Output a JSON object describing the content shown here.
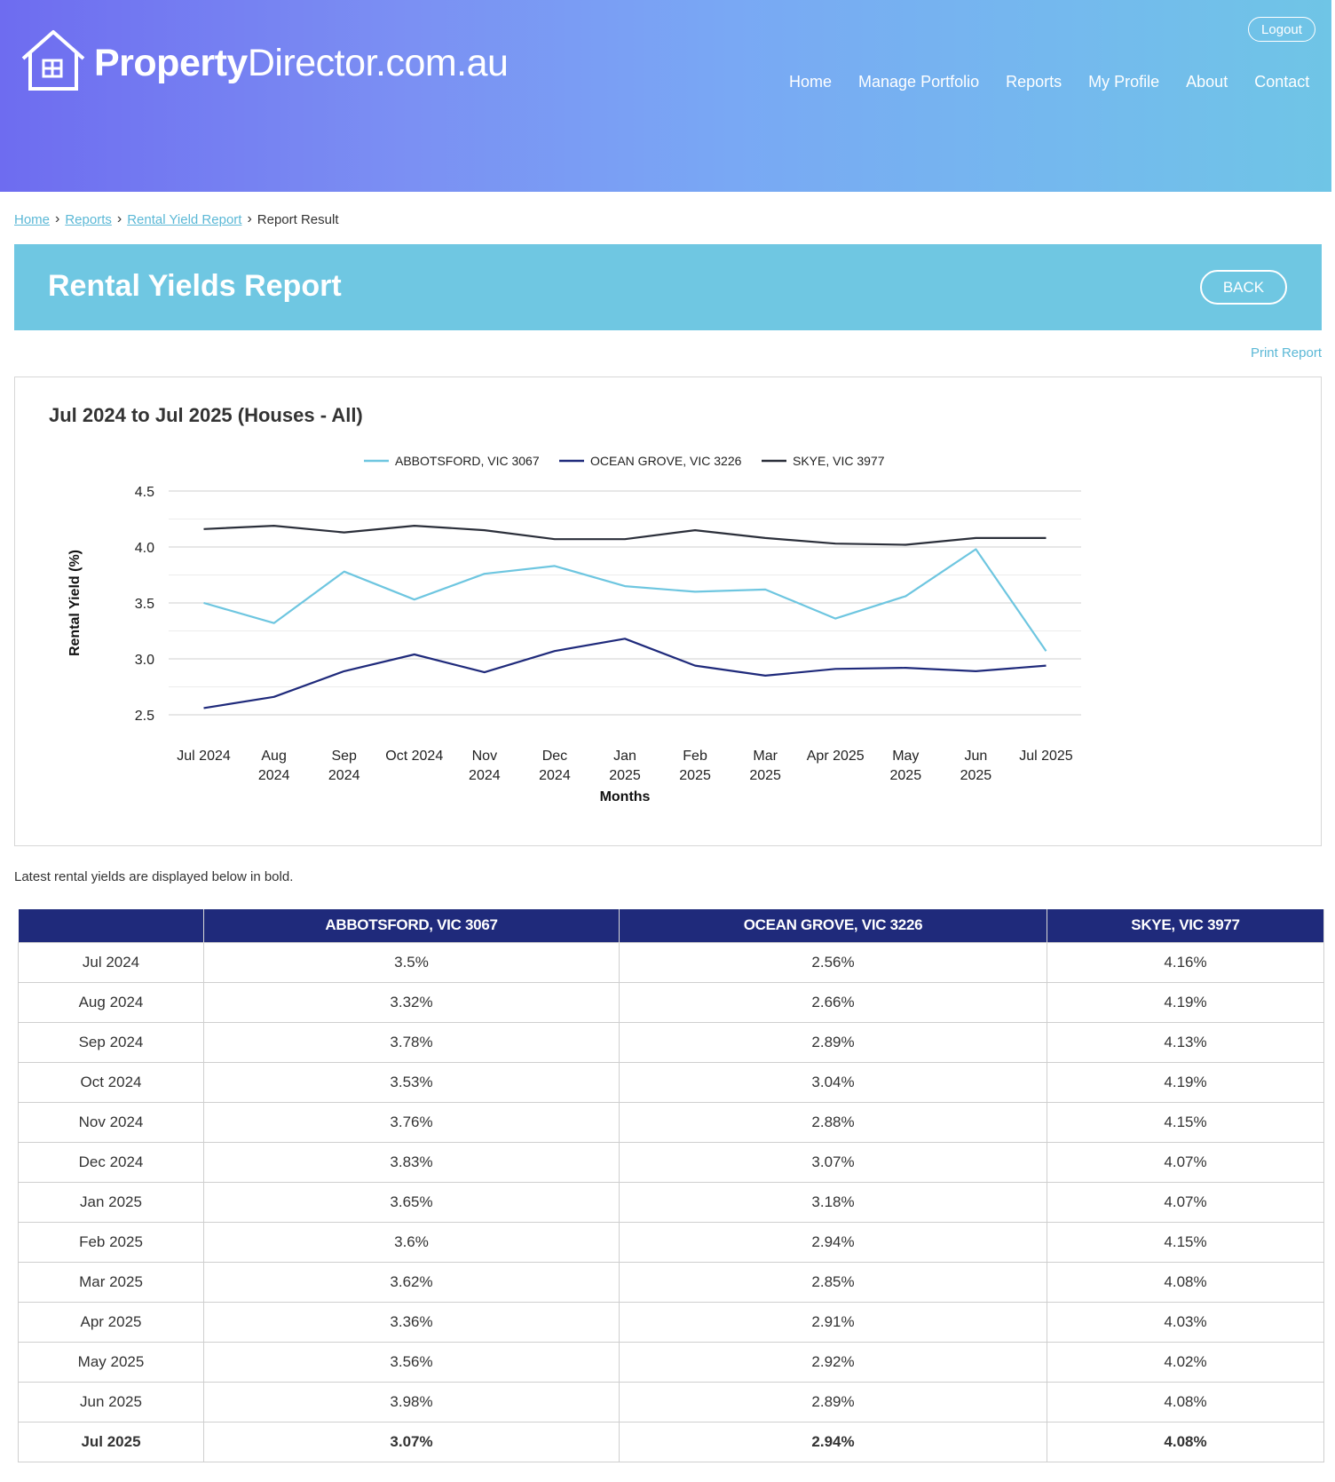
{
  "header": {
    "logo_bold": "Property",
    "logo_rest": "Director.com.au",
    "logout": "Logout",
    "nav": [
      "Home",
      "Manage Portfolio",
      "Reports",
      "My Profile",
      "About",
      "Contact"
    ]
  },
  "breadcrumb": {
    "items": [
      "Home",
      "Reports",
      "Rental Yield Report"
    ],
    "current": "Report Result"
  },
  "report": {
    "title": "Rental Yields Report",
    "back": "BACK",
    "print": "Print Report",
    "note": "Latest rental yields are displayed below in bold."
  },
  "colors": {
    "accent": "#6fc7e2",
    "table_header": "#1f2a7b",
    "abbotsford": "#6ec6e0",
    "ocean_grove": "#1f2a7b",
    "skye": "#2b2f3a"
  },
  "chart_data": {
    "type": "line",
    "title": "Jul 2024 to Jul 2025 (Houses - All)",
    "xlabel": "Months",
    "ylabel": "Rental Yield (%)",
    "ylim": [
      2.5,
      4.5
    ],
    "yticks": [
      "2.5",
      "3.0",
      "3.5",
      "4.0",
      "4.5"
    ],
    "grid": true,
    "legend": "top",
    "categories": [
      [
        "Jul 2024"
      ],
      [
        "Aug",
        "2024"
      ],
      [
        "Sep",
        "2024"
      ],
      [
        "Oct 2024"
      ],
      [
        "Nov",
        "2024"
      ],
      [
        "Dec",
        "2024"
      ],
      [
        "Jan",
        "2025"
      ],
      [
        "Feb",
        "2025"
      ],
      [
        "Mar",
        "2025"
      ],
      [
        "Apr 2025"
      ],
      [
        "May",
        "2025"
      ],
      [
        "Jun",
        "2025"
      ],
      [
        "Jul 2025"
      ]
    ],
    "series": [
      {
        "name": "ABBOTSFORD, VIC 3067",
        "color": "#6ec6e0",
        "values": [
          3.5,
          3.32,
          3.78,
          3.53,
          3.76,
          3.83,
          3.65,
          3.6,
          3.62,
          3.36,
          3.56,
          3.98,
          3.07
        ]
      },
      {
        "name": "OCEAN GROVE, VIC 3226",
        "color": "#1f2a7b",
        "values": [
          2.56,
          2.66,
          2.89,
          3.04,
          2.88,
          3.07,
          3.18,
          2.94,
          2.85,
          2.91,
          2.92,
          2.89,
          2.94
        ]
      },
      {
        "name": "SKYE, VIC 3977",
        "color": "#2b2f3a",
        "values": [
          4.16,
          4.19,
          4.13,
          4.19,
          4.15,
          4.07,
          4.07,
          4.15,
          4.08,
          4.03,
          4.02,
          4.08,
          4.08
        ]
      }
    ]
  },
  "table": {
    "headers": [
      "",
      "ABBOTSFORD, VIC 3067",
      "OCEAN GROVE, VIC 3226",
      "SKYE, VIC 3977"
    ],
    "rows": [
      [
        "Jul 2024",
        "3.5%",
        "2.56%",
        "4.16%"
      ],
      [
        "Aug 2024",
        "3.32%",
        "2.66%",
        "4.19%"
      ],
      [
        "Sep 2024",
        "3.78%",
        "2.89%",
        "4.13%"
      ],
      [
        "Oct 2024",
        "3.53%",
        "3.04%",
        "4.19%"
      ],
      [
        "Nov 2024",
        "3.76%",
        "2.88%",
        "4.15%"
      ],
      [
        "Dec 2024",
        "3.83%",
        "3.07%",
        "4.07%"
      ],
      [
        "Jan 2025",
        "3.65%",
        "3.18%",
        "4.07%"
      ],
      [
        "Feb 2025",
        "3.6%",
        "2.94%",
        "4.15%"
      ],
      [
        "Mar 2025",
        "3.62%",
        "2.85%",
        "4.08%"
      ],
      [
        "Apr 2025",
        "3.36%",
        "2.91%",
        "4.03%"
      ],
      [
        "May 2025",
        "3.56%",
        "2.92%",
        "4.02%"
      ],
      [
        "Jun 2025",
        "3.98%",
        "2.89%",
        "4.08%"
      ],
      [
        "Jul 2025",
        "3.07%",
        "2.94%",
        "4.08%"
      ]
    ]
  }
}
